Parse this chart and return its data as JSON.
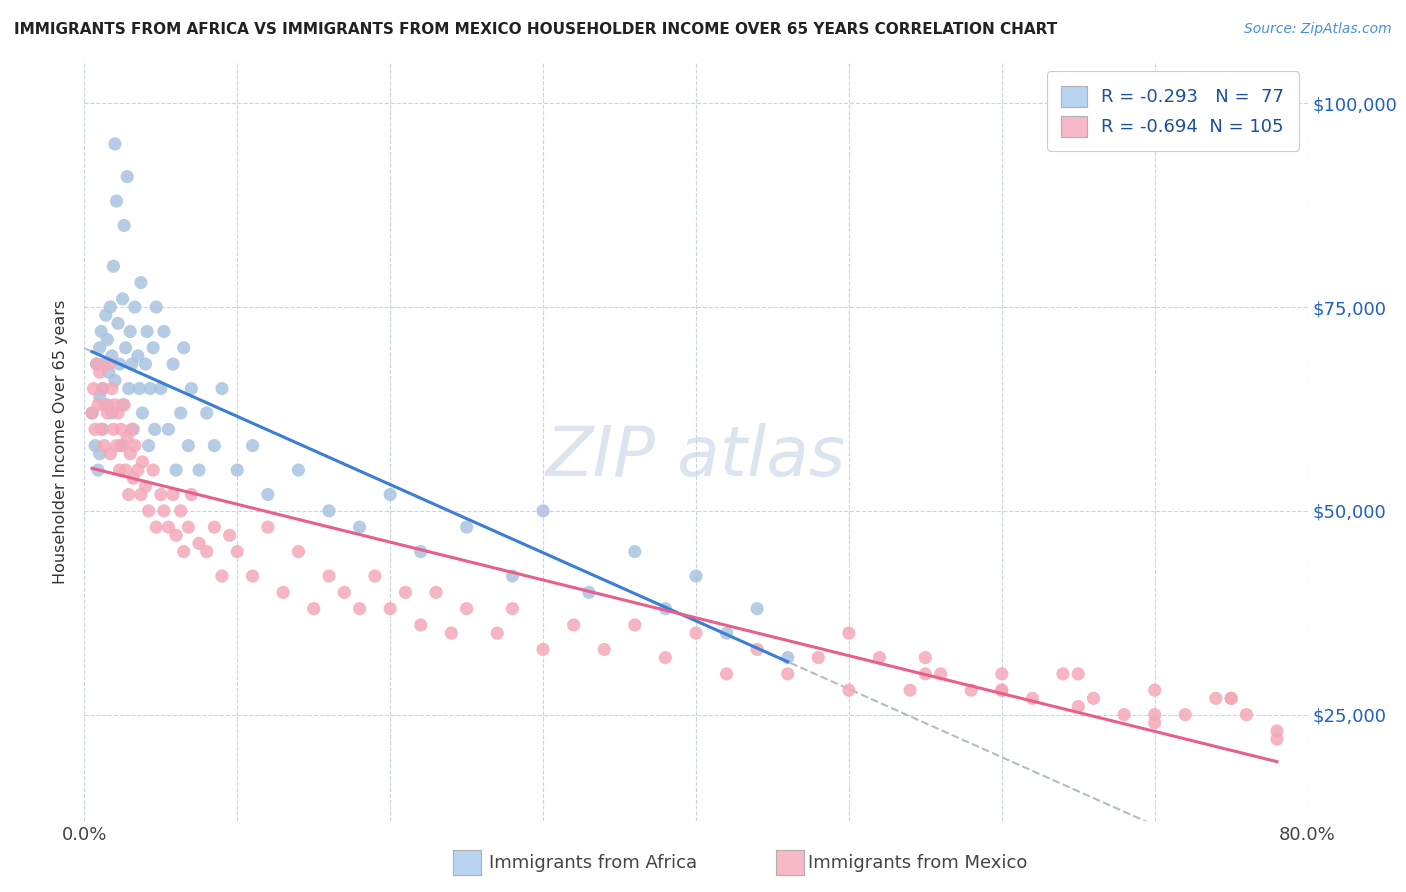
{
  "title": "IMMIGRANTS FROM AFRICA VS IMMIGRANTS FROM MEXICO HOUSEHOLDER INCOME OVER 65 YEARS CORRELATION CHART",
  "source": "Source: ZipAtlas.com",
  "ylabel": "Householder Income Over 65 years",
  "y_ticks": [
    25000,
    50000,
    75000,
    100000
  ],
  "y_tick_labels": [
    "$25,000",
    "$50,000",
    "$75,000",
    "$100,000"
  ],
  "x_min": 0.0,
  "x_max": 0.8,
  "y_min": 12000,
  "y_max": 105000,
  "africa_R": -0.293,
  "africa_N": 77,
  "mexico_R": -0.694,
  "mexico_N": 105,
  "africa_color": "#a8c4e0",
  "mexico_color": "#f4a8b8",
  "africa_line_color": "#3a7fd5",
  "mexico_line_color": "#e8608a",
  "dashed_line_color": "#b0bec5",
  "legend_box_africa": "#b8d4f0",
  "legend_box_mexico": "#f8b8c8",
  "watermark_color": "#dce4f0",
  "africa_scatter_x": [
    0.005,
    0.007,
    0.008,
    0.009,
    0.01,
    0.01,
    0.01,
    0.011,
    0.012,
    0.012,
    0.013,
    0.014,
    0.015,
    0.015,
    0.016,
    0.017,
    0.018,
    0.018,
    0.019,
    0.02,
    0.02,
    0.021,
    0.022,
    0.023,
    0.024,
    0.025,
    0.025,
    0.026,
    0.027,
    0.028,
    0.029,
    0.03,
    0.031,
    0.032,
    0.033,
    0.035,
    0.036,
    0.037,
    0.038,
    0.04,
    0.041,
    0.042,
    0.043,
    0.045,
    0.046,
    0.047,
    0.05,
    0.052,
    0.055,
    0.058,
    0.06,
    0.063,
    0.065,
    0.068,
    0.07,
    0.075,
    0.08,
    0.085,
    0.09,
    0.1,
    0.11,
    0.12,
    0.14,
    0.16,
    0.18,
    0.2,
    0.22,
    0.25,
    0.28,
    0.3,
    0.33,
    0.36,
    0.38,
    0.4,
    0.42,
    0.44,
    0.46
  ],
  "africa_scatter_y": [
    62000,
    58000,
    68000,
    55000,
    70000,
    64000,
    57000,
    72000,
    65000,
    60000,
    68000,
    74000,
    71000,
    63000,
    67000,
    75000,
    69000,
    62000,
    80000,
    95000,
    66000,
    88000,
    73000,
    68000,
    58000,
    76000,
    63000,
    85000,
    70000,
    91000,
    65000,
    72000,
    68000,
    60000,
    75000,
    69000,
    65000,
    78000,
    62000,
    68000,
    72000,
    58000,
    65000,
    70000,
    60000,
    75000,
    65000,
    72000,
    60000,
    68000,
    55000,
    62000,
    70000,
    58000,
    65000,
    55000,
    62000,
    58000,
    65000,
    55000,
    58000,
    52000,
    55000,
    50000,
    48000,
    52000,
    45000,
    48000,
    42000,
    50000,
    40000,
    45000,
    38000,
    42000,
    35000,
    38000,
    32000
  ],
  "mexico_scatter_x": [
    0.005,
    0.006,
    0.007,
    0.008,
    0.009,
    0.01,
    0.011,
    0.012,
    0.013,
    0.014,
    0.015,
    0.016,
    0.017,
    0.018,
    0.019,
    0.02,
    0.021,
    0.022,
    0.023,
    0.024,
    0.025,
    0.026,
    0.027,
    0.028,
    0.029,
    0.03,
    0.031,
    0.032,
    0.033,
    0.035,
    0.037,
    0.038,
    0.04,
    0.042,
    0.045,
    0.047,
    0.05,
    0.052,
    0.055,
    0.058,
    0.06,
    0.063,
    0.065,
    0.068,
    0.07,
    0.075,
    0.08,
    0.085,
    0.09,
    0.095,
    0.1,
    0.11,
    0.12,
    0.13,
    0.14,
    0.15,
    0.16,
    0.17,
    0.18,
    0.19,
    0.2,
    0.21,
    0.22,
    0.23,
    0.24,
    0.25,
    0.27,
    0.28,
    0.3,
    0.32,
    0.34,
    0.36,
    0.38,
    0.4,
    0.42,
    0.44,
    0.46,
    0.48,
    0.5,
    0.52,
    0.54,
    0.56,
    0.58,
    0.6,
    0.62,
    0.64,
    0.66,
    0.68,
    0.7,
    0.72,
    0.74,
    0.76,
    0.78,
    0.55,
    0.6,
    0.65,
    0.7,
    0.75,
    0.5,
    0.55,
    0.6,
    0.65,
    0.7,
    0.75,
    0.78
  ],
  "mexico_scatter_y": [
    62000,
    65000,
    60000,
    68000,
    63000,
    67000,
    60000,
    65000,
    58000,
    63000,
    62000,
    68000,
    57000,
    65000,
    60000,
    63000,
    58000,
    62000,
    55000,
    60000,
    58000,
    63000,
    55000,
    59000,
    52000,
    57000,
    60000,
    54000,
    58000,
    55000,
    52000,
    56000,
    53000,
    50000,
    55000,
    48000,
    52000,
    50000,
    48000,
    52000,
    47000,
    50000,
    45000,
    48000,
    52000,
    46000,
    45000,
    48000,
    42000,
    47000,
    45000,
    42000,
    48000,
    40000,
    45000,
    38000,
    42000,
    40000,
    38000,
    42000,
    38000,
    40000,
    36000,
    40000,
    35000,
    38000,
    35000,
    38000,
    33000,
    36000,
    33000,
    36000,
    32000,
    35000,
    30000,
    33000,
    30000,
    32000,
    28000,
    32000,
    28000,
    30000,
    28000,
    30000,
    27000,
    30000,
    27000,
    25000,
    28000,
    25000,
    27000,
    25000,
    22000,
    32000,
    28000,
    30000,
    25000,
    27000,
    35000,
    30000,
    28000,
    26000,
    24000,
    27000,
    23000
  ]
}
